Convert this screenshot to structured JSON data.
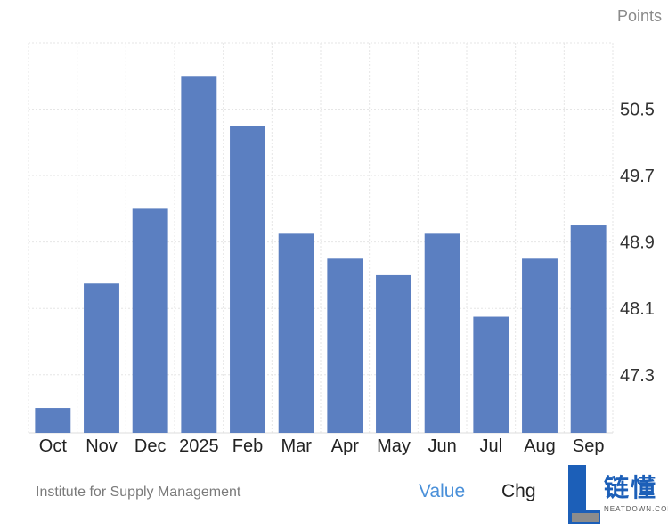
{
  "chart_data": {
    "type": "bar",
    "categories": [
      "Oct",
      "Nov",
      "Dec",
      "2025",
      "Feb",
      "Mar",
      "Apr",
      "May",
      "Jun",
      "Jul",
      "Aug",
      "Sep"
    ],
    "values": [
      46.9,
      48.4,
      49.3,
      50.9,
      50.3,
      49.0,
      48.7,
      48.5,
      49.0,
      48.0,
      48.7,
      49.1
    ],
    "ylabel": "Points",
    "yticks": [
      47.3,
      48.1,
      48.9,
      49.7,
      50.5
    ],
    "ylim": [
      46.6,
      51.3
    ],
    "grid": true,
    "color": "#5b7fc1"
  },
  "footer": {
    "source": "Institute for Supply Management",
    "tab_value": "Value",
    "tab_chg": "Chg"
  },
  "logo": {
    "text": "链懂",
    "subtext": "NEATDOWN.COM"
  }
}
